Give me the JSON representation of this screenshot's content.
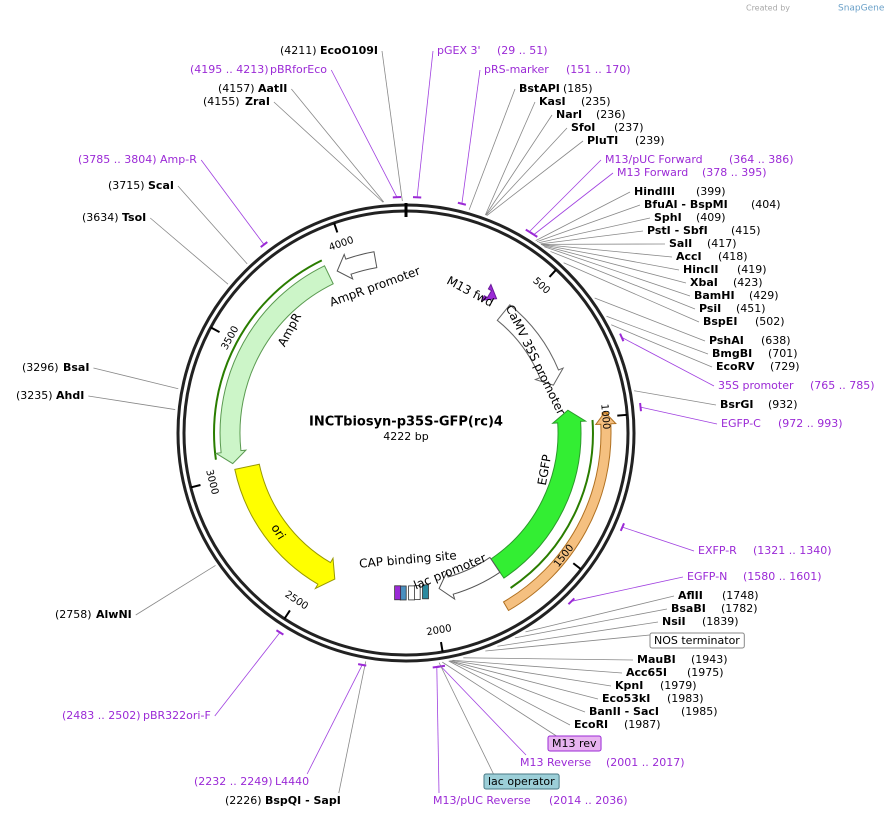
{
  "brand": {
    "prefix": "Created by",
    "name": "SnapGene"
  },
  "map": {
    "name": "INCTbiosyn-p35S-GFP(rc)4",
    "length": "4222 bp",
    "ticks": [
      500,
      1000,
      1500,
      2000,
      2500,
      3000,
      3500,
      4000
    ],
    "features": [
      "AmpR promoter",
      "AmpR",
      "M13 fwd",
      "CaMV 35S promoter",
      "EGFP",
      "ori",
      "CAP binding site",
      "lac promoter"
    ],
    "labels": [
      {
        "name": "pGEX 3'",
        "range": "(29 .. 51)"
      },
      {
        "name": "pRS-marker",
        "range": "(151 .. 170)"
      },
      {
        "name": "BstAPI",
        "position": "(185)"
      },
      {
        "name": "KasI",
        "position": "(235)"
      },
      {
        "name": "NarI",
        "position": "(236)"
      },
      {
        "name": "SfoI",
        "position": "(237)"
      },
      {
        "name": "PluTI",
        "position": "(239)"
      },
      {
        "name": "M13/pUC Forward",
        "range": "(364 .. 386)"
      },
      {
        "name": "M13 Forward",
        "range": "(378 .. 395)"
      },
      {
        "name": "HindIII",
        "position": "(399)"
      },
      {
        "name": "BfuAI  -  BspMI",
        "position": "(404)"
      },
      {
        "name": "SphI",
        "position": "(409)"
      },
      {
        "name": "PstI  -  SbfI",
        "position": "(415)"
      },
      {
        "name": "SalI",
        "position": "(417)"
      },
      {
        "name": "AccI",
        "position": "(418)"
      },
      {
        "name": "HincII",
        "position": "(419)"
      },
      {
        "name": "XbaI",
        "position": "(423)"
      },
      {
        "name": "BamHI",
        "position": "(429)"
      },
      {
        "name": "PsiI",
        "position": "(451)"
      },
      {
        "name": "BspEI",
        "position": "(502)"
      },
      {
        "name": "PshAI",
        "position": "(638)"
      },
      {
        "name": "BmgBI",
        "position": "(701)"
      },
      {
        "name": "EcoRV",
        "position": "(729)"
      },
      {
        "name": "35S promoter",
        "range": "(765 .. 785)"
      },
      {
        "name": "BsrGI",
        "position": "(932)"
      },
      {
        "name": "EGFP-C",
        "range": "(972 .. 993)"
      },
      {
        "name": "EXFP-R",
        "range": "(1321 .. 1340)"
      },
      {
        "name": "EGFP-N",
        "range": "(1580 .. 1601)"
      },
      {
        "name": "AflII",
        "position": "(1748)"
      },
      {
        "name": "BsaBI",
        "position": "(1782)"
      },
      {
        "name": "NsiI",
        "position": "(1839)"
      },
      {
        "box": "NOS terminator"
      },
      {
        "name": "MauBI",
        "position": "(1943)"
      },
      {
        "name": "Acc65I",
        "position": "(1975)"
      },
      {
        "name": "KpnI",
        "position": "(1979)"
      },
      {
        "name": "Eco53kI",
        "position": "(1983)"
      },
      {
        "name": "BanII  -  SacI",
        "position": "(1985)"
      },
      {
        "name": "EcoRI",
        "position": "(1987)"
      },
      {
        "box": "M13 rev"
      },
      {
        "name": "M13 Reverse",
        "range": "(2001 .. 2017)"
      },
      {
        "box": "lac operator"
      },
      {
        "name": "M13/pUC Reverse",
        "range": "(2014 .. 2036)"
      },
      {
        "name": "BspQI  -  SapI",
        "position": "(2226)"
      },
      {
        "name": "L4440",
        "range": "(2232 .. 2249)"
      },
      {
        "name": "pBR322ori-F",
        "range": "(2483 .. 2502)"
      },
      {
        "name": "AlwNI",
        "position": "(2758)"
      },
      {
        "name": "AhdI",
        "position": "(3235)"
      },
      {
        "name": "BsaI",
        "position": "(3296)"
      },
      {
        "name": "TsoI",
        "position": "(3634)"
      },
      {
        "name": "ScaI",
        "position": "(3715)"
      },
      {
        "name": "Amp-R",
        "range": "(3785 .. 3804)"
      },
      {
        "name": "ZraI",
        "position": "(4155)"
      },
      {
        "name": "AatII",
        "position": "(4157)"
      },
      {
        "name": "pBRforEco",
        "range": "(4195 .. 4213)"
      },
      {
        "name": "EcoO109I",
        "position": "(4211)"
      }
    ]
  }
}
